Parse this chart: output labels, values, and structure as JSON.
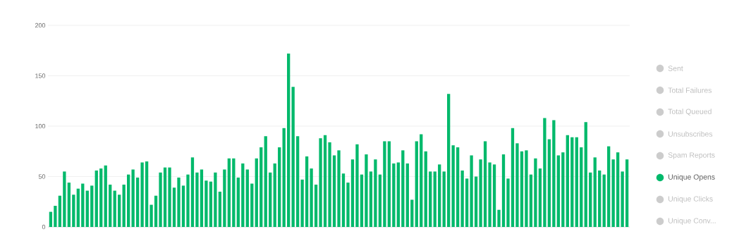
{
  "chart_data": {
    "type": "bar",
    "categories": [
      null,
      null,
      null,
      null,
      null,
      null,
      null,
      null,
      null,
      null,
      null,
      null,
      null,
      null,
      null,
      null,
      null,
      null,
      null,
      null,
      null,
      null,
      null,
      null,
      null,
      null,
      null,
      null,
      null,
      null,
      null,
      null,
      null,
      null,
      null,
      null,
      null,
      null,
      null,
      null,
      null,
      null,
      null,
      null,
      null,
      null,
      null,
      null,
      null,
      null,
      null,
      null,
      null,
      null,
      null,
      null,
      null,
      null,
      null,
      null,
      null,
      null,
      null,
      null,
      null,
      null,
      null,
      null,
      null,
      null,
      null,
      null,
      null,
      null,
      null,
      null,
      null,
      null,
      null,
      null,
      null,
      null,
      null,
      null,
      null,
      null,
      null,
      null,
      null,
      null,
      null,
      null,
      null,
      null,
      null,
      null,
      null,
      null,
      null,
      null,
      null,
      null,
      null,
      null,
      null,
      null,
      null,
      null,
      null,
      null,
      null,
      null,
      null,
      null,
      null,
      null,
      null,
      null,
      null,
      null,
      null,
      null,
      null,
      null,
      null,
      null,
      null
    ],
    "series": [
      {
        "name": "Sent",
        "color": "#cccccc",
        "values": [
          null,
          null,
          null,
          null,
          null,
          null,
          null,
          null,
          null,
          null,
          null,
          null,
          null,
          null,
          null,
          null,
          null,
          null,
          null,
          null,
          null,
          null,
          null,
          null,
          null,
          null,
          null,
          null,
          null,
          null,
          null,
          null,
          null,
          null,
          null,
          null,
          null,
          null,
          null,
          null,
          null,
          null,
          null,
          null,
          null,
          null,
          null,
          null,
          null,
          null,
          null,
          null,
          null,
          null,
          null,
          null,
          null,
          null,
          null,
          null,
          null,
          null,
          null,
          null,
          null,
          null,
          null,
          null,
          null,
          null,
          null,
          null,
          null,
          null,
          null,
          null,
          null,
          null,
          null,
          null,
          null,
          null,
          null,
          null,
          null,
          null,
          null,
          null,
          null,
          null,
          null,
          null,
          null,
          null,
          null,
          null,
          null,
          null,
          null,
          null,
          null,
          null,
          null,
          null,
          null,
          null,
          null,
          null,
          null,
          null,
          null,
          null,
          null,
          null,
          null,
          null,
          null,
          null,
          null,
          null,
          null,
          null,
          null,
          null,
          null,
          null,
          null
        ]
      },
      {
        "name": "Total Failures",
        "color": "#cccccc",
        "values": [
          null,
          null,
          null,
          null,
          null,
          null,
          null,
          null,
          null,
          null,
          null,
          null,
          null,
          null,
          null,
          null,
          null,
          null,
          null,
          null,
          null,
          null,
          null,
          null,
          null,
          null,
          null,
          null,
          null,
          null,
          null,
          null,
          null,
          null,
          null,
          null,
          null,
          null,
          null,
          null,
          null,
          null,
          null,
          null,
          null,
          null,
          null,
          null,
          null,
          null,
          null,
          null,
          null,
          null,
          null,
          null,
          null,
          null,
          null,
          null,
          null,
          null,
          null,
          null,
          null,
          null,
          null,
          null,
          null,
          null,
          null,
          null,
          null,
          null,
          null,
          null,
          null,
          null,
          null,
          null,
          null,
          null,
          null,
          null,
          null,
          null,
          null,
          null,
          null,
          null,
          null,
          null,
          null,
          null,
          null,
          null,
          null,
          null,
          null,
          null,
          null,
          null,
          null,
          null,
          null,
          null,
          null,
          null,
          null,
          null,
          null,
          null,
          null,
          null,
          null,
          null,
          null,
          null,
          null,
          null,
          null,
          null,
          null,
          null,
          null,
          null,
          null
        ]
      },
      {
        "name": "Total Queued",
        "color": "#cccccc",
        "values": [
          null,
          null,
          null,
          null,
          null,
          null,
          null,
          null,
          null,
          null,
          null,
          null,
          null,
          null,
          null,
          null,
          null,
          null,
          null,
          null,
          null,
          null,
          null,
          null,
          null,
          null,
          null,
          null,
          null,
          null,
          null,
          null,
          null,
          null,
          null,
          null,
          null,
          null,
          null,
          null,
          null,
          null,
          null,
          null,
          null,
          null,
          null,
          null,
          null,
          null,
          null,
          null,
          null,
          null,
          null,
          null,
          null,
          null,
          null,
          null,
          null,
          null,
          null,
          null,
          null,
          null,
          null,
          null,
          null,
          null,
          null,
          null,
          null,
          null,
          null,
          null,
          null,
          null,
          null,
          null,
          null,
          null,
          null,
          null,
          null,
          null,
          null,
          null,
          null,
          null,
          null,
          null,
          null,
          null,
          null,
          null,
          null,
          null,
          null,
          null,
          null,
          null,
          null,
          null,
          null,
          null,
          null,
          null,
          null,
          null,
          null,
          null,
          null,
          null,
          null,
          null,
          null,
          null,
          null,
          null,
          null,
          null,
          null,
          null,
          null,
          null,
          null
        ]
      },
      {
        "name": "Unsubscribes",
        "color": "#cccccc",
        "values": [
          null,
          null,
          null,
          null,
          null,
          null,
          null,
          null,
          null,
          null,
          null,
          null,
          null,
          null,
          null,
          null,
          null,
          null,
          null,
          null,
          null,
          null,
          null,
          null,
          null,
          null,
          null,
          null,
          null,
          null,
          null,
          null,
          null,
          null,
          null,
          null,
          null,
          null,
          null,
          null,
          null,
          null,
          null,
          null,
          null,
          null,
          null,
          null,
          null,
          null,
          null,
          null,
          null,
          null,
          null,
          null,
          null,
          null,
          null,
          null,
          null,
          null,
          null,
          null,
          null,
          null,
          null,
          null,
          null,
          null,
          null,
          null,
          null,
          null,
          null,
          null,
          null,
          null,
          null,
          null,
          null,
          null,
          null,
          null,
          null,
          null,
          null,
          null,
          null,
          null,
          null,
          null,
          null,
          null,
          null,
          null,
          null,
          null,
          null,
          null,
          null,
          null,
          null,
          null,
          null,
          null,
          null,
          null,
          null,
          null,
          null,
          null,
          null,
          null,
          null,
          null,
          null,
          null,
          null,
          null,
          null,
          null,
          null,
          null,
          null,
          null,
          null
        ]
      },
      {
        "name": "Spam Reports",
        "color": "#cccccc",
        "values": [
          null,
          null,
          null,
          null,
          null,
          null,
          null,
          null,
          null,
          null,
          null,
          null,
          null,
          null,
          null,
          null,
          null,
          null,
          null,
          null,
          null,
          null,
          null,
          null,
          null,
          null,
          null,
          null,
          null,
          null,
          null,
          null,
          null,
          null,
          null,
          null,
          null,
          null,
          null,
          null,
          null,
          null,
          null,
          null,
          null,
          null,
          null,
          null,
          null,
          null,
          null,
          null,
          null,
          null,
          null,
          null,
          null,
          null,
          null,
          null,
          null,
          null,
          null,
          null,
          null,
          null,
          null,
          null,
          null,
          null,
          null,
          null,
          null,
          null,
          null,
          null,
          null,
          null,
          null,
          null,
          null,
          null,
          null,
          null,
          null,
          null,
          null,
          null,
          null,
          null,
          null,
          null,
          null,
          null,
          null,
          null,
          null,
          null,
          null,
          null,
          null,
          null,
          null,
          null,
          null,
          null,
          null,
          null,
          null,
          null,
          null,
          null,
          null,
          null,
          null,
          null,
          null,
          null,
          null,
          null,
          null,
          null,
          null,
          null,
          null,
          null,
          null
        ]
      },
      {
        "name": "Unique Opens",
        "color": "#00b96b",
        "values": [
          15,
          21,
          31,
          55,
          44,
          32,
          38,
          43,
          36,
          41,
          56,
          58,
          61,
          42,
          36,
          32,
          42,
          52,
          57,
          49,
          64,
          65,
          22,
          31,
          54,
          59,
          59,
          39,
          49,
          41,
          52,
          69,
          54,
          57,
          46,
          45,
          54,
          35,
          57,
          68,
          68,
          49,
          63,
          57,
          43,
          68,
          79,
          90,
          54,
          63,
          79,
          98,
          172,
          139,
          90,
          47,
          70,
          58,
          42,
          88,
          91,
          84,
          71,
          76,
          53,
          44,
          67,
          82,
          52,
          72,
          55,
          67,
          52,
          85,
          85,
          63,
          64,
          76,
          63,
          27,
          85,
          92,
          75,
          55,
          55,
          62,
          55,
          132,
          81,
          79,
          56,
          48,
          71,
          50,
          67,
          85,
          64,
          62,
          17,
          72,
          48,
          98,
          83,
          75,
          76,
          52,
          68,
          58,
          108,
          87,
          106,
          71,
          74,
          91,
          89,
          89,
          79,
          104,
          54,
          69,
          56,
          52,
          80,
          67,
          74,
          55,
          67
        ]
      },
      {
        "name": "Unique Clicks",
        "color": "#cccccc",
        "values": [
          null,
          null,
          null,
          null,
          null,
          null,
          null,
          null,
          null,
          null,
          null,
          null,
          null,
          null,
          null,
          null,
          null,
          null,
          null,
          null,
          null,
          null,
          null,
          null,
          null,
          null,
          null,
          null,
          null,
          null,
          null,
          null,
          null,
          null,
          null,
          null,
          null,
          null,
          null,
          null,
          null,
          null,
          null,
          null,
          null,
          null,
          null,
          null,
          null,
          null,
          null,
          null,
          null,
          null,
          null,
          null,
          null,
          null,
          null,
          null,
          null,
          null,
          null,
          null,
          null,
          null,
          null,
          null,
          null,
          null,
          null,
          null,
          null,
          null,
          null,
          null,
          null,
          null,
          null,
          null,
          null,
          null,
          null,
          null,
          null,
          null,
          null,
          null,
          null,
          null,
          null,
          null,
          null,
          null,
          null,
          null,
          null,
          null,
          null,
          null,
          null,
          null,
          null,
          null,
          null,
          null,
          null,
          null,
          null,
          null,
          null,
          null,
          null,
          null,
          null,
          null,
          null,
          null,
          null,
          null,
          null,
          null,
          null,
          null,
          null,
          null,
          null
        ]
      },
      {
        "name": "Unique Conv...",
        "color": "#cccccc",
        "values": [
          null,
          null,
          null,
          null,
          null,
          null,
          null,
          null,
          null,
          null,
          null,
          null,
          null,
          null,
          null,
          null,
          null,
          null,
          null,
          null,
          null,
          null,
          null,
          null,
          null,
          null,
          null,
          null,
          null,
          null,
          null,
          null,
          null,
          null,
          null,
          null,
          null,
          null,
          null,
          null,
          null,
          null,
          null,
          null,
          null,
          null,
          null,
          null,
          null,
          null,
          null,
          null,
          null,
          null,
          null,
          null,
          null,
          null,
          null,
          null,
          null,
          null,
          null,
          null,
          null,
          null,
          null,
          null,
          null,
          null,
          null,
          null,
          null,
          null,
          null,
          null,
          null,
          null,
          null,
          null,
          null,
          null,
          null,
          null,
          null,
          null,
          null,
          null,
          null,
          null,
          null,
          null,
          null,
          null,
          null,
          null,
          null,
          null,
          null,
          null,
          null,
          null,
          null,
          null,
          null,
          null,
          null,
          null,
          null,
          null,
          null,
          null,
          null,
          null,
          null,
          null,
          null,
          null,
          null,
          null,
          null,
          null,
          null,
          null,
          null,
          null,
          null
        ]
      }
    ],
    "ylim": [
      0,
      200
    ],
    "yticks": [
      0,
      50,
      100,
      150,
      200
    ],
    "grid": "y",
    "legend": "right",
    "marker": "circle"
  }
}
